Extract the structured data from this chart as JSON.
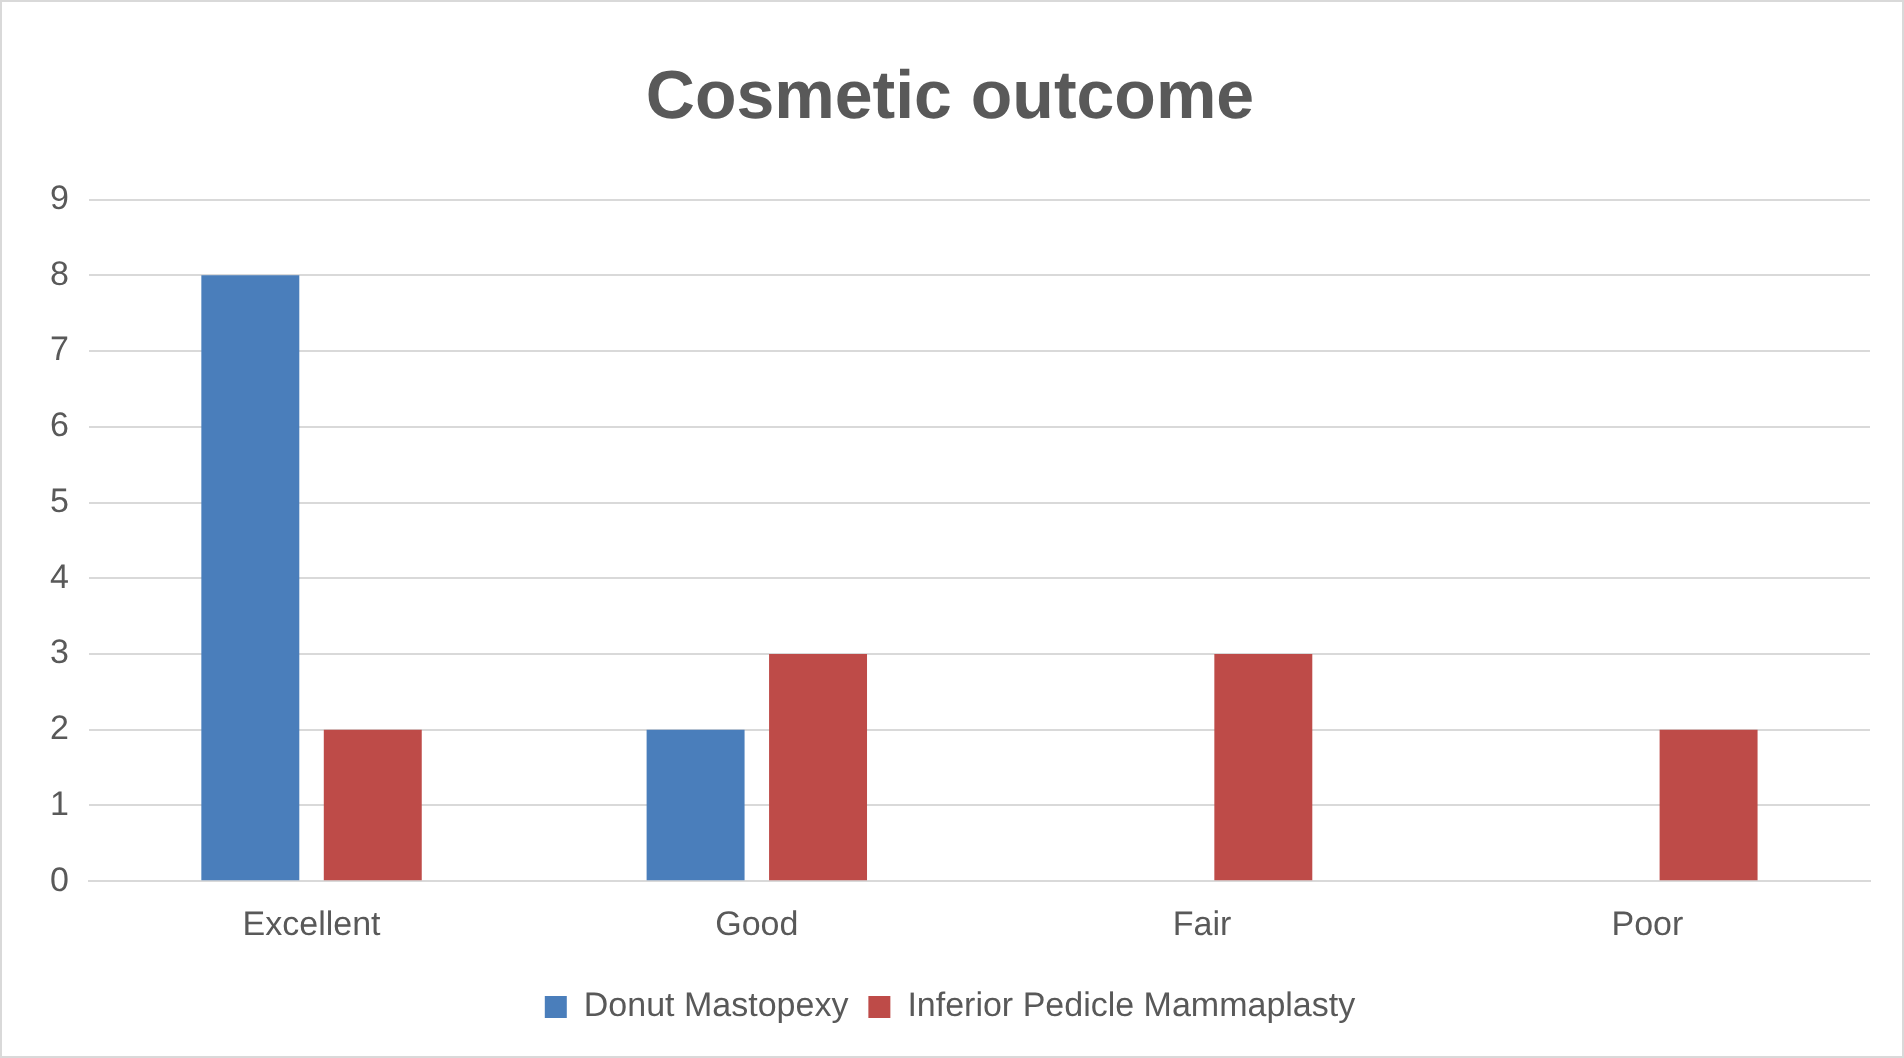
{
  "chart_data": {
    "type": "bar",
    "title": "Cosmetic outcome",
    "categories": [
      "Excellent",
      "Good",
      "Fair",
      "Poor"
    ],
    "series": [
      {
        "name": "Donut Mastopexy",
        "color": "#4a7ebb",
        "values": [
          8,
          2,
          0,
          0
        ]
      },
      {
        "name": "Inferior Pedicle Mammaplasty",
        "color": "#be4b48",
        "values": [
          2,
          3,
          3,
          2
        ]
      }
    ],
    "ylim": [
      0,
      9
    ],
    "yticks": [
      0,
      1,
      2,
      3,
      4,
      5,
      6,
      7,
      8,
      9
    ],
    "grid": "y",
    "legend": "bottom"
  }
}
